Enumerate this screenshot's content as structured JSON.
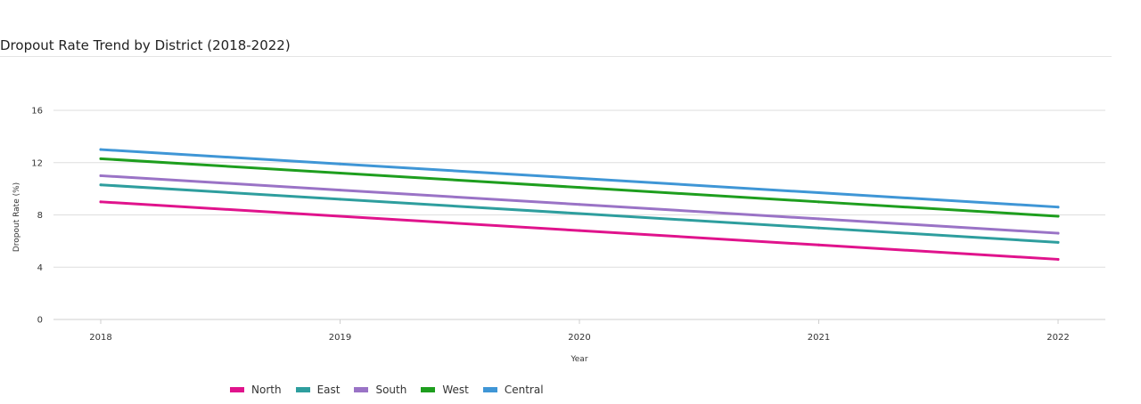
{
  "title": "Dropout Rate Trend by District (2018-2022)",
  "chart_data": {
    "type": "line",
    "title": "Dropout Rate Trend by District (2018-2022)",
    "xlabel": "Year",
    "ylabel": "Dropout Rate (%)",
    "categories": [
      "2018",
      "2019",
      "2020",
      "2021",
      "2022"
    ],
    "ylim": [
      0,
      16
    ],
    "yticks": [
      0,
      4,
      8,
      12,
      16
    ],
    "grid": true,
    "legend": "bottom-left",
    "series": [
      {
        "name": "North",
        "color": "#e0138c",
        "values": [
          9.0,
          7.9,
          6.8,
          5.7,
          4.6
        ]
      },
      {
        "name": "East",
        "color": "#2e9e9e",
        "values": [
          10.3,
          9.2,
          8.1,
          7.0,
          5.9
        ]
      },
      {
        "name": "South",
        "color": "#9a73c6",
        "values": [
          11.0,
          9.9,
          8.8,
          7.7,
          6.6
        ]
      },
      {
        "name": "West",
        "color": "#1e9e1e",
        "values": [
          12.3,
          11.2,
          10.1,
          9.0,
          7.9
        ]
      },
      {
        "name": "Central",
        "color": "#3f96d6",
        "values": [
          13.0,
          11.9,
          10.8,
          9.7,
          8.6
        ]
      }
    ]
  }
}
